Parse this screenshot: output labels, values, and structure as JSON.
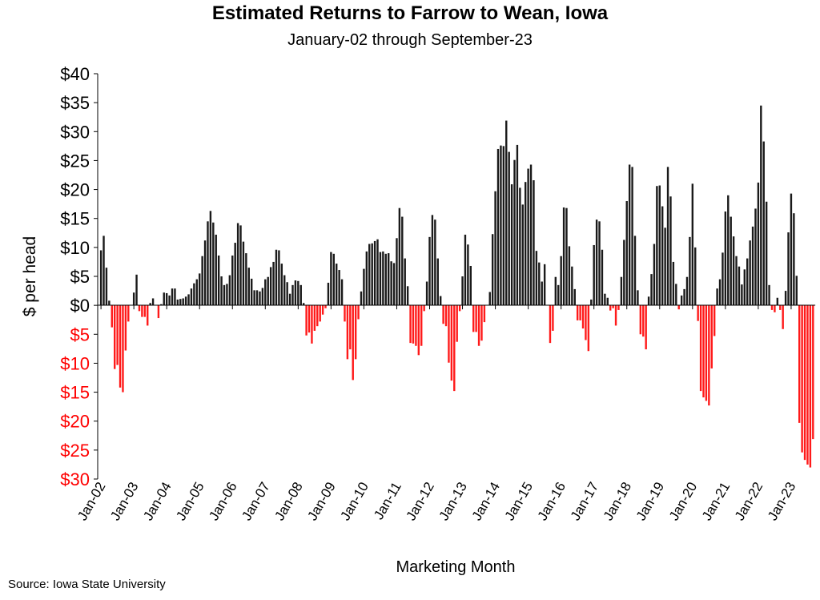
{
  "chart_data": {
    "type": "bar",
    "title": "Estimated Returns to Farrow to Wean, Iowa",
    "subtitle": "January-02 through September-23",
    "xlabel": "Marketing Month",
    "ylabel": "$ per head",
    "source": "Source: Iowa State University",
    "ylim": [
      -30,
      40
    ],
    "yticks": [
      40,
      35,
      30,
      25,
      20,
      15,
      10,
      5,
      0,
      -5,
      -10,
      -15,
      -20,
      -25,
      -30
    ],
    "ytick_labels": [
      "$40",
      "$35",
      "$30",
      "$25",
      "$20",
      "$15",
      "$10",
      "$5",
      "$0",
      "$5",
      "$10",
      "$15",
      "$20",
      "$25",
      "$30"
    ],
    "xtick_labels": [
      "Jan-02",
      "Jan-03",
      "Jan-04",
      "Jan-05",
      "Jan-06",
      "Jan-07",
      "Jan-08",
      "Jan-09",
      "Jan-10",
      "Jan-11",
      "Jan-12",
      "Jan-13",
      "Jan-14",
      "Jan-15",
      "Jan-16",
      "Jan-17",
      "Jan-18",
      "Jan-19",
      "Jan-20",
      "Jan-21",
      "Jan-22",
      "Jan-23"
    ],
    "xtick_interval_months": 12,
    "colors": {
      "positive": "#1a1a1a",
      "negative": "#ff1a1a",
      "negative_label": "#ff0000"
    },
    "values": [
      9.5,
      12,
      6.5,
      0.8,
      -3.8,
      -11,
      -10.3,
      -14.2,
      -15,
      -7.8,
      -2.8,
      0,
      2.2,
      5.3,
      -1,
      -2,
      -2,
      -3.5,
      0.4,
      1.2,
      0,
      -2.2,
      0.2,
      2.2,
      2.1,
      1.7,
      2.9,
      2.9,
      1.0,
      1.1,
      1.2,
      1.5,
      1.9,
      2.9,
      3.8,
      4.5,
      5.5,
      8.5,
      11.2,
      14.5,
      16.3,
      14.3,
      12.2,
      8.6,
      5.0,
      3.5,
      3.7,
      5.2,
      8.6,
      10.8,
      14.2,
      13.8,
      11.0,
      9.0,
      6.5,
      4.6,
      2.6,
      2.6,
      2.4,
      3.0,
      4.5,
      4.9,
      6.6,
      7.5,
      9.6,
      9.5,
      7.2,
      5.2,
      4.0,
      2.0,
      3.5,
      4.3,
      4.2,
      3.5,
      0.4,
      -5.2,
      -4.7,
      -6.6,
      -4.4,
      -3.6,
      -2.8,
      -1.6,
      -0.5,
      3.9,
      9.2,
      8.9,
      7.2,
      6.1,
      4.5,
      -2.8,
      -9.3,
      -7.6,
      -12.9,
      -9.3,
      -2.4,
      2.4,
      6.3,
      9.3,
      10.6,
      10.7,
      11.1,
      11.4,
      9.2,
      9.3,
      8.9,
      9.0,
      7.6,
      7.3,
      11.6,
      16.8,
      15.3,
      8.1,
      3.3,
      -6.5,
      -6.6,
      -7.0,
      -8.6,
      -7.0,
      -1.0,
      4.1,
      11.8,
      15.6,
      14.8,
      8.1,
      1.6,
      -3.2,
      -3.6,
      -9.9,
      -13,
      -14.8,
      -6.3,
      -1,
      5,
      12.2,
      10.5,
      6.8,
      -4.6,
      -4.6,
      -7,
      -6.1,
      -2.9,
      0,
      2.3,
      12.3,
      19.7,
      27,
      27.6,
      27.5,
      31.9,
      26.5,
      20.9,
      25.1,
      27.7,
      20.3,
      17.4,
      21.3,
      23.6,
      24.3,
      21.6,
      9.4,
      7.4,
      4.1,
      7.1,
      0,
      -6.5,
      -4.4,
      4.9,
      3.5,
      8.5,
      16.9,
      16.8,
      10.2,
      6.7,
      2.8,
      -2.6,
      -2.6,
      -4,
      -6,
      -7.9,
      1.0,
      10.4,
      14.8,
      14.5,
      9.6,
      2.0,
      1.3,
      -0.9,
      -0.5,
      -3.5,
      -0.8,
      4.9,
      11.3,
      18,
      24.3,
      23.9,
      12,
      2.6,
      -5,
      -5.4,
      -7.6,
      1.5,
      5.4,
      10.6,
      20.6,
      20.7,
      17.1,
      13.4,
      23.9,
      18.8,
      7.5,
      3.7,
      -0.7,
      1.7,
      2.8,
      4.9,
      11.8,
      21,
      10,
      -2.7,
      -14.8,
      -15.9,
      -16.5,
      -17.3,
      -10.9,
      -5.3,
      2.9,
      4.5,
      9.1,
      16.2,
      19,
      15.3,
      11.9,
      8.5,
      6.7,
      3.6,
      6.2,
      8.1,
      11.2,
      13.6,
      16.7,
      21.2,
      34.5,
      28.3,
      17.9,
      3.5,
      -0.8,
      -1.2,
      1.3,
      -0.8,
      -4.1,
      2.5,
      12.6,
      19.3,
      15.9,
      5.1,
      -20.3,
      -25.4,
      -26.7,
      -27.5,
      -28,
      -23.1
    ]
  }
}
